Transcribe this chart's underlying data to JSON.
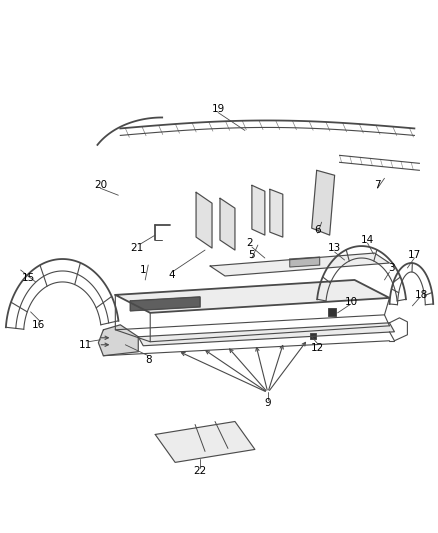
{
  "background_color": "#ffffff",
  "line_color": "#4a4a4a",
  "label_color": "#000000",
  "fig_width": 4.38,
  "fig_height": 5.33,
  "dpi": 100
}
